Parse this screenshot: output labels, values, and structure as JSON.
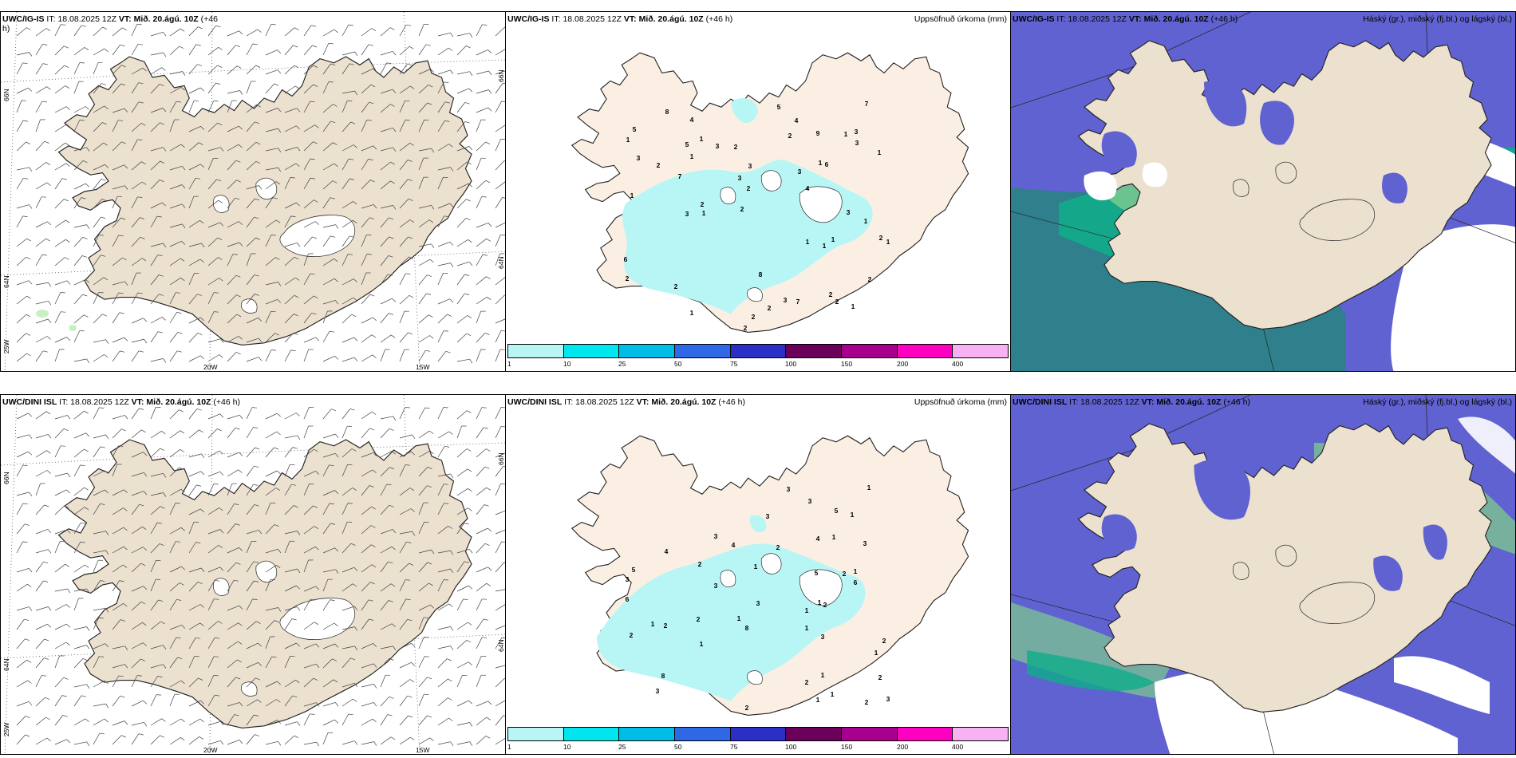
{
  "rows": [
    {
      "wind_panel": {
        "model": "UWC/IG-IS",
        "it": "IT: 18.08.2025 12Z",
        "vt_label": "VT:",
        "vt": "Mið. 20.ágú. 10Z",
        "lead": "(+46",
        "lead2": "h)"
      },
      "precip_panel": {
        "model": "UWC/IG-IS",
        "it": "IT: 18.08.2025 12Z",
        "vt_label": "VT:",
        "vt": "Mið. 20.ágú. 10Z",
        "lead": "(+46 h)",
        "field": "Uppsöfnuð úrkoma (mm)"
      },
      "cloud_panel": {
        "model": "UWC/IG-IS",
        "it": "IT: 18.08.2025 12Z",
        "vt_label": "VT:",
        "vt": "Mið. 20.ágú. 10Z",
        "lead": "(+46 h)",
        "field": "Háský (gr.), miðský (fj.bl.) og lágský (bl.)"
      }
    },
    {
      "wind_panel": {
        "model": "UWC/DINI ISL",
        "it": "IT: 18.08.2025 12Z",
        "vt_label": "VT:",
        "vt": "Mið. 20.ágú. 10Z",
        "lead": "(+46 h)",
        "lead2": ""
      },
      "precip_panel": {
        "model": "UWC/DINI ISL",
        "it": "IT: 18.08.2025 12Z",
        "vt_label": "VT:",
        "vt": "Mið. 20.ágú. 10Z",
        "lead": "(+46 h)",
        "field": "Uppsöfnuð úrkoma (mm)"
      },
      "cloud_panel": {
        "model": "UWC/DINI ISL",
        "it": "IT: 18.08.2025 12Z",
        "vt_label": "VT:",
        "vt": "Mið. 20.ágú. 10Z",
        "lead": "(+46 h)",
        "field": "Háský (gr.), miðský (fj.bl.) og lágský (bl.)"
      }
    }
  ],
  "graticule": {
    "lat_66": "66N",
    "lat_64": "64N",
    "lon_25": "25W",
    "lon_20": "20W",
    "lon_15": "15W"
  },
  "colorbar": {
    "ticks": [
      "1",
      "10",
      "25",
      "50",
      "75",
      "100",
      "150",
      "200",
      "400"
    ],
    "colors": [
      "#b8f6f6",
      "#00e6ee",
      "#00bde8",
      "#2f68e4",
      "#2a2fc6",
      "#6a005a",
      "#a8008e",
      "#ff00c0",
      "#f7b2f4"
    ]
  },
  "precip_values_top": [
    "3",
    "1",
    "4",
    "2",
    "1",
    "2",
    "1",
    "1",
    "3",
    "1",
    "2",
    "1",
    "1",
    "2",
    "1",
    "1",
    "2",
    "2",
    "1",
    "3",
    "2",
    "1",
    "2",
    "8",
    "9",
    "7",
    "3",
    "4",
    "8",
    "3",
    "6",
    "7",
    "7",
    "2",
    "5",
    "4",
    "3",
    "2",
    "5",
    "2",
    "6",
    "5",
    "3",
    "2",
    "2",
    "1",
    "1",
    "3",
    "2",
    "1",
    "3",
    "3",
    "2",
    "1"
  ],
  "precip_values_bottom": [
    "1",
    "2",
    "2",
    "1",
    "2",
    "1",
    "1",
    "1",
    "2",
    "1",
    "1",
    "1",
    "2",
    "3",
    "1",
    "2",
    "1",
    "1",
    "5",
    "4",
    "8",
    "6",
    "5",
    "3",
    "6",
    "8",
    "4",
    "4",
    "3",
    "2",
    "3",
    "3",
    "5",
    "1",
    "3",
    "3",
    "2",
    "3",
    "2",
    "1",
    "1",
    "2",
    "3",
    "2",
    "3",
    "3",
    "1",
    "2"
  ],
  "colors": {
    "land": "#ece0cf",
    "precip_land": "#fbefe4",
    "precip_light": "#b8f6f6",
    "cloud_high": "#7fcc8e",
    "cloud_mid": "#0fae8a",
    "cloud_low": "#5f62d0",
    "sea_dark": "#2f7f8c"
  }
}
